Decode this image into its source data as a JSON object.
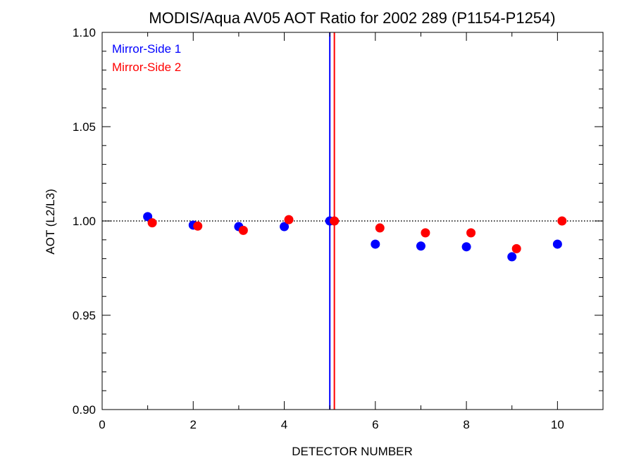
{
  "chart_data": {
    "type": "scatter",
    "title": "MODIS/Aqua AV05 AOT Ratio for 2002 289 (P1154-P1254)",
    "xlabel": "DETECTOR NUMBER",
    "ylabel": "AOT (L2/L3)",
    "xlim": [
      0,
      11
    ],
    "ylim": [
      0.9,
      1.1
    ],
    "xticks": [
      0,
      2,
      4,
      6,
      8,
      10
    ],
    "xtick_labels": [
      "0",
      "2",
      "4",
      "6",
      "8",
      "10"
    ],
    "yticks": [
      0.9,
      0.95,
      1.0,
      1.05,
      1.1
    ],
    "ytick_labels": [
      "0.90",
      "0.95",
      "1.00",
      "1.05",
      "1.10"
    ],
    "reference_line_y": 1.0,
    "vertical_lines": [
      {
        "x": 5.0,
        "color": "#0000ff"
      },
      {
        "x": 5.1,
        "color": "#ff0000"
      }
    ],
    "legend_position": "top-left",
    "series": [
      {
        "name": "Mirror-Side 1",
        "color": "#0000ff",
        "x": [
          1,
          2,
          3,
          4,
          5,
          6,
          7,
          8,
          9,
          10
        ],
        "y": [
          1.0023,
          0.9978,
          0.997,
          0.997,
          1.0,
          0.9877,
          0.9867,
          0.9863,
          0.981,
          0.9877
        ]
      },
      {
        "name": "Mirror-Side 2",
        "color": "#ff0000",
        "x": [
          1.1,
          2.1,
          3.1,
          4.1,
          5.1,
          6.1,
          7.1,
          8.1,
          9.1,
          10.1
        ],
        "y": [
          0.999,
          0.9973,
          0.995,
          1.0007,
          1.0,
          0.9963,
          0.9937,
          0.9937,
          0.9853,
          1.0
        ]
      }
    ]
  }
}
